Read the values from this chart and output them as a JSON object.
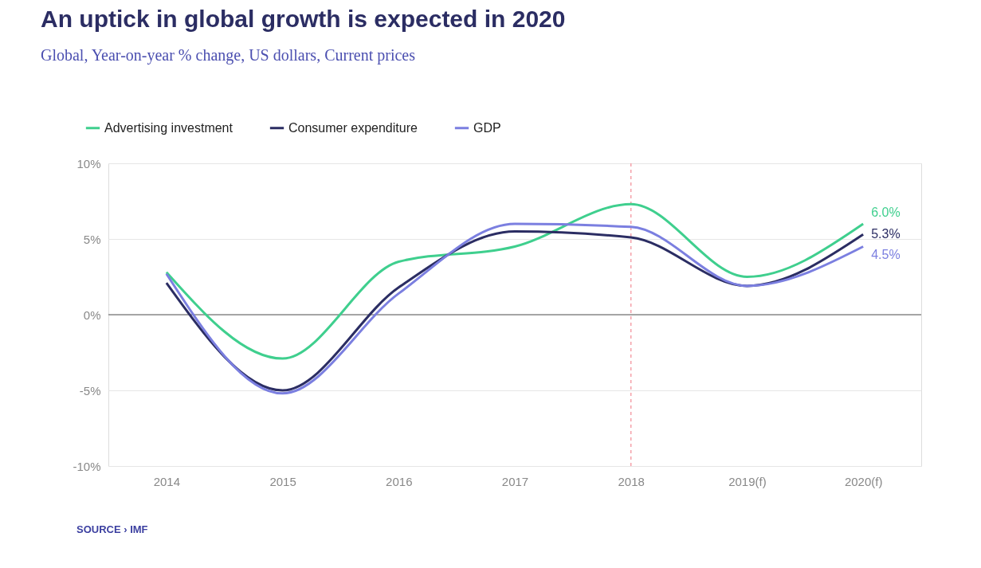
{
  "chart_data": {
    "type": "line",
    "title": "An uptick in global growth is expected in 2020",
    "subtitle": "Global, Year-on-year % change, US dollars, Current prices",
    "categories": [
      "2014",
      "2015",
      "2016",
      "2017",
      "2018",
      "2019(f)",
      "2020(f)"
    ],
    "series": [
      {
        "name": "Advertising investment",
        "color": "#3fcf8e",
        "values": [
          2.8,
          -2.9,
          3.5,
          4.5,
          7.3,
          2.5,
          6.0
        ],
        "value_labels": [
          null,
          null,
          null,
          null,
          null,
          null,
          "6.0%"
        ]
      },
      {
        "name": "Consumer expenditure",
        "color": "#2b2d63",
        "values": [
          2.1,
          -5.0,
          1.8,
          5.5,
          5.1,
          1.9,
          5.3
        ],
        "value_labels": [
          null,
          null,
          null,
          null,
          null,
          null,
          "5.3%"
        ]
      },
      {
        "name": "GDP",
        "color": "#7b7fe0",
        "values": [
          2.7,
          -5.2,
          1.4,
          6.0,
          5.8,
          1.9,
          4.5
        ],
        "value_labels": [
          null,
          null,
          null,
          null,
          null,
          null,
          "4.5%"
        ]
      }
    ],
    "ylim": [
      -10,
      10
    ],
    "yticks": [
      {
        "value": -10,
        "label": "-10%"
      },
      {
        "value": -5,
        "label": "-5%"
      },
      {
        "value": 0,
        "label": "0%"
      },
      {
        "value": 5,
        "label": "5%"
      },
      {
        "value": 10,
        "label": "10%"
      }
    ],
    "ref_lines": [
      {
        "axis": "x",
        "value": "2018",
        "color": "#f4a0a8",
        "line_style": "dashed"
      },
      {
        "axis": "y",
        "value": 0,
        "color": "#555555",
        "line_style": "solid"
      }
    ],
    "grid": "y",
    "legend": "top left",
    "marker": "none",
    "line_style": "solid",
    "annotations": [
      "SOURCE › IMF"
    ]
  }
}
